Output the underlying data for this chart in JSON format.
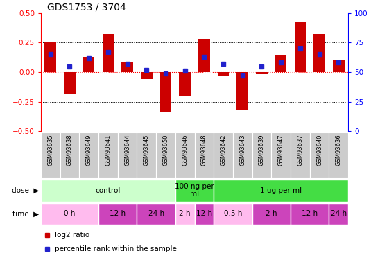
{
  "title": "GDS1753 / 3704",
  "samples": [
    "GSM93635",
    "GSM93638",
    "GSM93649",
    "GSM93641",
    "GSM93644",
    "GSM93645",
    "GSM93650",
    "GSM93646",
    "GSM93648",
    "GSM93642",
    "GSM93643",
    "GSM93639",
    "GSM93647",
    "GSM93637",
    "GSM93640",
    "GSM93636"
  ],
  "log2_ratio": [
    0.25,
    -0.19,
    0.13,
    0.32,
    0.08,
    -0.06,
    -0.34,
    -0.2,
    0.28,
    -0.03,
    -0.32,
    -0.02,
    0.14,
    0.42,
    0.32,
    0.1
  ],
  "percentile": [
    65,
    55,
    62,
    67,
    57,
    52,
    49,
    51,
    63,
    57,
    47,
    55,
    58,
    70,
    65,
    58
  ],
  "ylim": [
    -0.5,
    0.5
  ],
  "yticks_left": [
    -0.5,
    -0.25,
    0,
    0.25,
    0.5
  ],
  "yticks_right": [
    0,
    25,
    50,
    75,
    100
  ],
  "bar_color": "#cc0000",
  "dot_color": "#2222cc",
  "dose_groups": [
    {
      "label": "control",
      "start": 0,
      "end": 7,
      "color": "#ccffcc"
    },
    {
      "label": "100 ng per\nml",
      "start": 7,
      "end": 9,
      "color": "#44dd44"
    },
    {
      "label": "1 ug per ml",
      "start": 9,
      "end": 16,
      "color": "#44dd44"
    }
  ],
  "time_groups": [
    {
      "label": "0 h",
      "start": 0,
      "end": 3,
      "color": "#ffbbee"
    },
    {
      "label": "12 h",
      "start": 3,
      "end": 5,
      "color": "#cc44bb"
    },
    {
      "label": "24 h",
      "start": 5,
      "end": 7,
      "color": "#cc44bb"
    },
    {
      "label": "2 h",
      "start": 7,
      "end": 8,
      "color": "#ffbbee"
    },
    {
      "label": "12 h",
      "start": 8,
      "end": 9,
      "color": "#cc44bb"
    },
    {
      "label": "0.5 h",
      "start": 9,
      "end": 11,
      "color": "#ffbbee"
    },
    {
      "label": "2 h",
      "start": 11,
      "end": 13,
      "color": "#cc44bb"
    },
    {
      "label": "12 h",
      "start": 13,
      "end": 15,
      "color": "#cc44bb"
    },
    {
      "label": "24 h",
      "start": 15,
      "end": 16,
      "color": "#cc44bb"
    }
  ],
  "legend_items": [
    {
      "label": "log2 ratio",
      "color": "#cc0000"
    },
    {
      "label": "percentile rank within the sample",
      "color": "#2222cc"
    }
  ],
  "sample_bg": "#cccccc"
}
